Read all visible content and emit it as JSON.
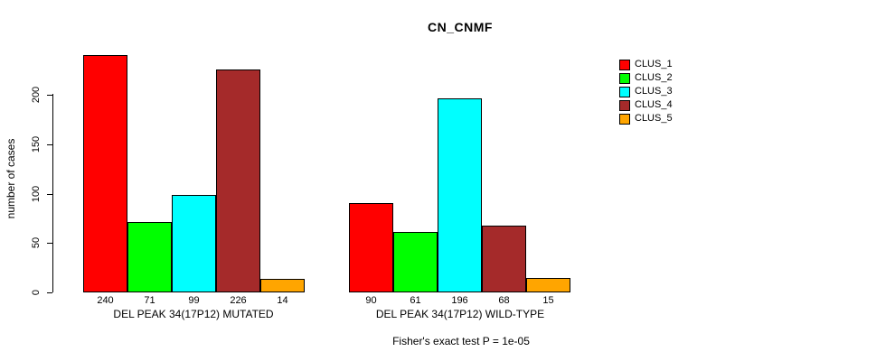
{
  "title": "CN_CNMF",
  "footer": "Fisher's exact test P = 1e-05",
  "chart_data": {
    "type": "bar",
    "title": "CN_CNMF",
    "xlabel": "",
    "ylabel": "number of cases",
    "ylim": [
      0,
      240
    ],
    "yticks": [
      0,
      50,
      100,
      150,
      200
    ],
    "grid": false,
    "legend_position": "right",
    "categories": [
      "DEL PEAK 34(17P12) MUTATED",
      "DEL PEAK 34(17P12) WILD-TYPE"
    ],
    "series": [
      {
        "name": "CLUS_1",
        "color": "#ff0000",
        "values": [
          240,
          90
        ]
      },
      {
        "name": "CLUS_2",
        "color": "#00ff00",
        "values": [
          71,
          61
        ]
      },
      {
        "name": "CLUS_3",
        "color": "#00ffff",
        "values": [
          99,
          196
        ]
      },
      {
        "name": "CLUS_4",
        "color": "#a52a2a",
        "values": [
          226,
          68
        ]
      },
      {
        "name": "CLUS_5",
        "color": "#ffa500",
        "values": [
          14,
          15
        ]
      }
    ],
    "groups": [
      {
        "label": "DEL PEAK 34(17P12) MUTATED",
        "values": [
          240,
          71,
          99,
          226,
          14
        ]
      },
      {
        "label": "DEL PEAK 34(17P12) WILD-TYPE",
        "values": [
          90,
          61,
          196,
          68,
          15
        ]
      }
    ],
    "annotation": "Fisher's exact test P = 1e-05"
  },
  "legend": {
    "entries": [
      {
        "label": "CLUS_1",
        "color": "#ff0000"
      },
      {
        "label": "CLUS_2",
        "color": "#00ff00"
      },
      {
        "label": "CLUS_3",
        "color": "#00ffff"
      },
      {
        "label": "CLUS_4",
        "color": "#a52a2a"
      },
      {
        "label": "CLUS_5",
        "color": "#ffa500"
      }
    ]
  }
}
